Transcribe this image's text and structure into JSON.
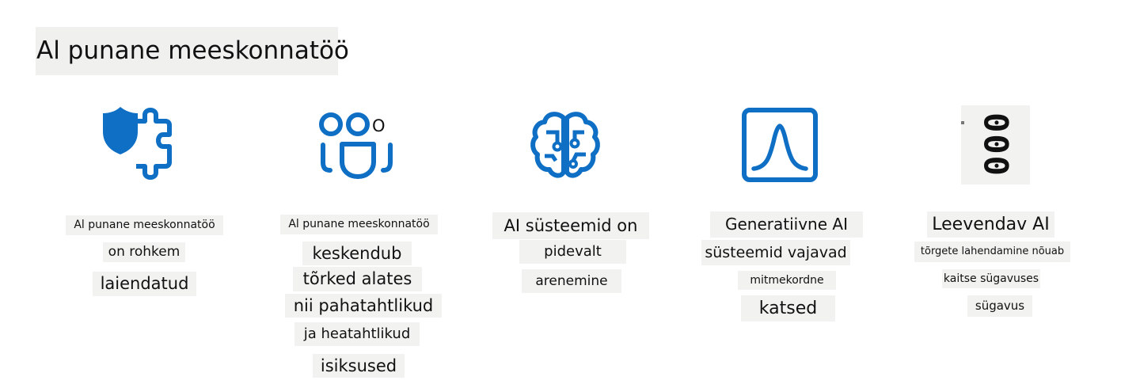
{
  "page": {
    "title": "Al punane meeskonnatöö"
  },
  "colors": {
    "accent": "#0e6fc4",
    "text_background": "#f2f3f0"
  },
  "columns": [
    {
      "icon": "shield-puzzle-icon",
      "lines": [
        "Al punane meeskonnatöö",
        "on rohkem",
        "laiendatud"
      ]
    },
    {
      "icon": "people-group-icon",
      "icon_label": "O",
      "lines": [
        "Al punane meeskonnatöö",
        "keskendub",
        "tõrked alates",
        "nii pahatahtlikud",
        "ja heatahtlikud",
        "isiksused"
      ]
    },
    {
      "icon": "brain-circuit-icon",
      "lines": [
        "AI süsteemid on",
        "pidevalt",
        "arenemine"
      ]
    },
    {
      "icon": "bell-curve-chart-icon",
      "lines": [
        "Generatiivne AI",
        "süsteemid vajavad",
        "mitmekordne",
        "katsed"
      ]
    },
    {
      "icon": "stacked-rings-icon",
      "icon_label": "000",
      "lines": [
        "Leevendav AI",
        "tõrgete lahendamine nõuab",
        "kaitse sügavuses",
        "sügavus"
      ]
    }
  ]
}
